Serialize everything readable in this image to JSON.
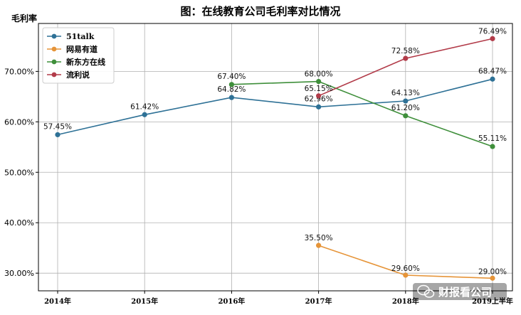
{
  "chart_data": {
    "type": "line",
    "title": "图：在线教育公司毛利率对比情况",
    "xlabel": "",
    "ylabel": "毛利率",
    "categories": [
      "2014年",
      "2015年",
      "2016年",
      "2017年",
      "2018年",
      "2019上半年"
    ],
    "ylim": [
      26.5,
      79.5
    ],
    "yticks": [
      30,
      40,
      50,
      60,
      70
    ],
    "ytick_labels": [
      "30.00%",
      "40.00%",
      "50.00%",
      "60.00%",
      "70.00%"
    ],
    "grid": true,
    "legend_position": "top-left",
    "series": [
      {
        "name": "51talk",
        "color": "#2e7196",
        "values": [
          57.45,
          61.42,
          64.82,
          62.96,
          64.13,
          68.47
        ],
        "labels": [
          "57.45%",
          "61.42%",
          "64.82%",
          "62.96%",
          "64.13%",
          "68.47%"
        ]
      },
      {
        "name": "网易有道",
        "color": "#e69438",
        "values": [
          null,
          null,
          null,
          35.5,
          29.6,
          29.0
        ],
        "labels": [
          "",
          "",
          "",
          "35.50%",
          "29.60%",
          "29.00%"
        ]
      },
      {
        "name": "新东方在线",
        "color": "#3f8f3b",
        "values": [
          null,
          null,
          67.4,
          68.0,
          61.2,
          55.11
        ],
        "labels": [
          "",
          "",
          "67.40%",
          "68.00%",
          "61.20%",
          "55.11%"
        ]
      },
      {
        "name": "流利说",
        "color": "#b23b49",
        "values": [
          null,
          null,
          null,
          65.15,
          72.58,
          76.49
        ],
        "labels": [
          "",
          "",
          "",
          "65.15%",
          "72.58%",
          "76.49%"
        ]
      }
    ]
  },
  "watermark": {
    "text": "财报看公司",
    "icon": "wechat-icon"
  }
}
